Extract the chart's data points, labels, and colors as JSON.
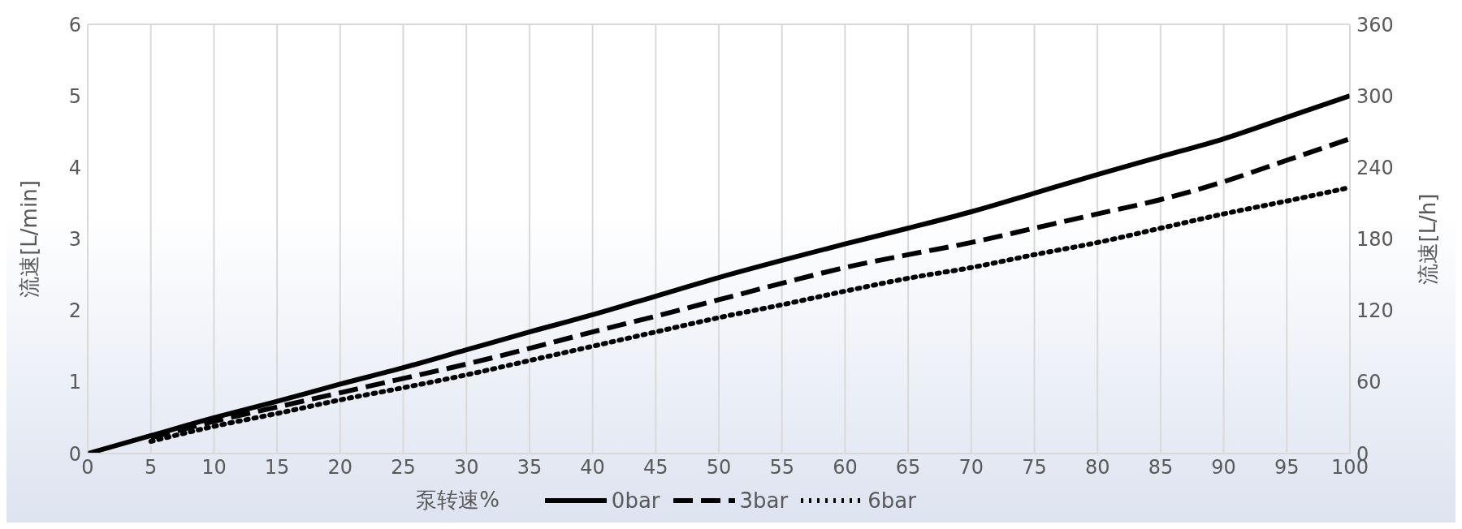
{
  "chart_data": {
    "type": "line",
    "xlabel": "泵转速%",
    "ylabel": "流速[L/min]",
    "y2label": "流速[L/h]",
    "x": [
      0,
      5,
      10,
      15,
      20,
      25,
      30,
      35,
      40,
      45,
      50,
      55,
      60,
      65,
      70,
      75,
      80,
      85,
      90,
      95,
      100
    ],
    "series": [
      {
        "name": "0bar",
        "color": "#000000",
        "line_style": "solid",
        "values": [
          0,
          0.25,
          0.5,
          0.73,
          0.97,
          1.2,
          1.45,
          1.7,
          1.94,
          2.2,
          2.46,
          2.7,
          2.93,
          3.15,
          3.38,
          3.64,
          3.9,
          4.15,
          4.4,
          4.7,
          5.0
        ]
      },
      {
        "name": "3bar",
        "color": "#000000",
        "line_style": "dashed",
        "values": [
          null,
          0.22,
          0.45,
          0.65,
          0.85,
          1.05,
          1.25,
          1.47,
          1.7,
          1.92,
          2.15,
          2.38,
          2.6,
          2.78,
          2.95,
          3.15,
          3.35,
          3.55,
          3.8,
          4.1,
          4.4
        ]
      },
      {
        "name": "6bar",
        "color": "#000000",
        "line_style": "dotted",
        "values": [
          null,
          0.17,
          0.38,
          0.56,
          0.75,
          0.92,
          1.1,
          1.3,
          1.5,
          1.7,
          1.9,
          2.08,
          2.27,
          2.45,
          2.6,
          2.78,
          2.95,
          3.15,
          3.35,
          3.53,
          3.72
        ]
      }
    ],
    "xlim": [
      0,
      100
    ],
    "xticks": [
      0,
      5,
      10,
      15,
      20,
      25,
      30,
      35,
      40,
      45,
      50,
      55,
      60,
      65,
      70,
      75,
      80,
      85,
      90,
      95,
      100
    ],
    "ylim": [
      0,
      6
    ],
    "yticks": [
      0,
      1,
      2,
      3,
      4,
      5,
      6
    ],
    "y2lim": [
      0,
      360
    ],
    "y2ticks": [
      0,
      60,
      120,
      180,
      240,
      300,
      360
    ],
    "grid": true,
    "legend": "bottom",
    "marker": "none"
  }
}
